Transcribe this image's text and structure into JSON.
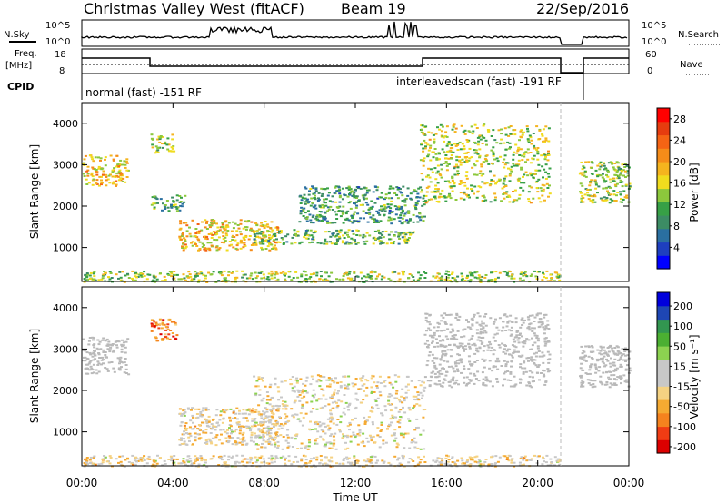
{
  "header": {
    "station": "Christmas Valley West (fitACF)",
    "beam": "Beam 19",
    "date": "22/Sep/2016"
  },
  "strip": {
    "nsky_label": "N.Sky",
    "nsky_ticks": [
      "10^5",
      "10^0"
    ],
    "nsearch_label": "N.Search",
    "nsearch_ticks": [
      "10^5",
      "10^0"
    ],
    "freq_label_1": "Freq.",
    "freq_label_2": "[MHz]",
    "freq_ticks": [
      "18",
      "8"
    ],
    "nave_label": "Nave",
    "nave_ticks": [
      "60",
      "0"
    ],
    "cpid_label": "CPID",
    "cpid_1": "normal (fast) -151 RF",
    "cpid_2": "interleavedscan (fast) -191 RF"
  },
  "colors": {
    "power": [
      "#0000ff",
      "#1e3fbf",
      "#2a6fa0",
      "#3c8c64",
      "#37a046",
      "#8cc83c",
      "#f0dc1e",
      "#f5b41e",
      "#f58c19",
      "#f56414",
      "#e63c0f",
      "#ff0000"
    ],
    "velocity": [
      "#dc0000",
      "#f03c14",
      "#f5821e",
      "#f5aa32",
      "#f5d282",
      "#c8c8c8",
      "#c8c8c8",
      "#8cd250",
      "#4baf32",
      "#329650",
      "#1e46b4",
      "#0000dc"
    ],
    "ground_scatter": "#b9b9b9"
  },
  "chart_data": [
    {
      "type": "heatmap",
      "name": "power",
      "xlabel": "Time UT",
      "ylabel": "Slant Range [km]",
      "x_ticks": [
        "00:00",
        "04:00",
        "08:00",
        "12:00",
        "16:00",
        "20:00",
        "00:00"
      ],
      "xlim": [
        0,
        24
      ],
      "y_ticks": [
        "1000",
        "2000",
        "3000",
        "4000"
      ],
      "ylim": [
        180,
        4500
      ],
      "colorbar_label": "Power [dB]",
      "colorbar_ticks": [
        "4",
        "8",
        "12",
        "16",
        "20",
        "24",
        "28"
      ],
      "colorbar_range": [
        0,
        30
      ],
      "regions": [
        {
          "t": [
            0.0,
            2.0
          ],
          "r": [
            2500,
            3250
          ],
          "level": 18
        },
        {
          "t": [
            3.0,
            4.0
          ],
          "r": [
            3300,
            3750
          ],
          "level": 14
        },
        {
          "t": [
            4.2,
            8.6
          ],
          "r": [
            950,
            1700
          ],
          "level": 18
        },
        {
          "t": [
            3.0,
            4.5
          ],
          "r": [
            1900,
            2300
          ],
          "level": 11
        },
        {
          "t": [
            7.5,
            14.5
          ],
          "r": [
            1100,
            1450
          ],
          "level": 12
        },
        {
          "t": [
            9.5,
            15.0
          ],
          "r": [
            1600,
            2500
          ],
          "level": 10
        },
        {
          "t": [
            14.8,
            20.5
          ],
          "r": [
            2100,
            4000
          ],
          "level": 15
        },
        {
          "t": [
            21.8,
            24.0
          ],
          "r": [
            2100,
            3100
          ],
          "level": 14
        },
        {
          "t": [
            0.0,
            21.0
          ],
          "r": [
            180,
            450
          ],
          "level": 14
        }
      ]
    },
    {
      "type": "heatmap",
      "name": "velocity",
      "xlabel": "Time UT",
      "ylabel": "Slant Range [km]",
      "x_ticks": [
        "00:00",
        "04:00",
        "08:00",
        "12:00",
        "16:00",
        "20:00",
        "00:00"
      ],
      "xlim": [
        0,
        24
      ],
      "y_ticks": [
        "1000",
        "2000",
        "3000",
        "4000"
      ],
      "ylim": [
        180,
        4500
      ],
      "colorbar_label": "Velocity [m s⁻¹]",
      "colorbar_ticks": [
        "200",
        "100",
        "50",
        "15",
        "-15",
        "-50",
        "-100",
        "-200"
      ],
      "colorbar_range": [
        -250,
        250
      ],
      "regions": [
        {
          "t": [
            0.0,
            2.0
          ],
          "r": [
            2400,
            3300
          ],
          "level": 0
        },
        {
          "t": [
            3.0,
            4.2
          ],
          "r": [
            3200,
            3750
          ],
          "level": -150
        },
        {
          "t": [
            4.2,
            8.6
          ],
          "r": [
            700,
            1600
          ],
          "level": -40
        },
        {
          "t": [
            7.5,
            15.0
          ],
          "r": [
            600,
            2400
          ],
          "level": -30
        },
        {
          "t": [
            15.0,
            20.5
          ],
          "r": [
            2100,
            3900
          ],
          "level": 0
        },
        {
          "t": [
            21.8,
            24.0
          ],
          "r": [
            2100,
            3100
          ],
          "level": 0
        },
        {
          "t": [
            0.0,
            21.0
          ],
          "r": [
            180,
            450
          ],
          "level": -40
        }
      ]
    }
  ]
}
